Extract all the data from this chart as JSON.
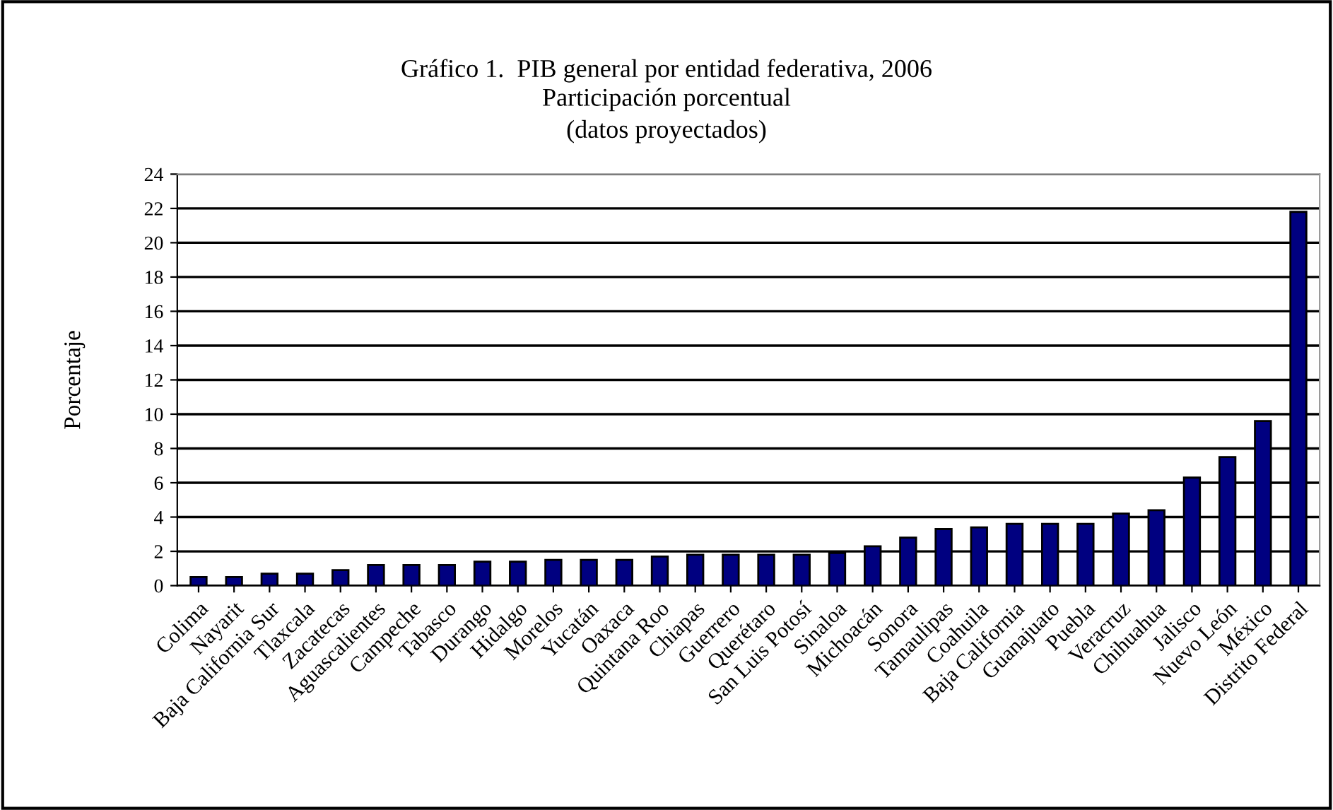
{
  "chart_data": {
    "type": "bar",
    "title": "Gráfico 1.  PIB general por entidad federativa, 2006",
    "subtitle": "Participación porcentual\n(datos proyectados)",
    "ylabel": "Porcentaje",
    "categories": [
      "Colima",
      "Nayarit",
      "Baja California Sur",
      "Tlaxcala",
      "Zacatecas",
      "Aguascalientes",
      "Campeche",
      "Tabasco",
      "Durango",
      "Hidalgo",
      "Morelos",
      "Yucatán",
      "Oaxaca",
      "Quintana Roo",
      "Chiapas",
      "Guerrero",
      "Querétaro",
      "San Luis Potosí",
      "Sinaloa",
      "Michoacán",
      "Sonora",
      "Tamaulipas",
      "Coahuila",
      "Baja California",
      "Guanajuato",
      "Puebla",
      "Veracruz",
      "Chihuahua",
      "Jalisco",
      "Nuevo León",
      "México",
      "Distrito Federal"
    ],
    "values": [
      0.5,
      0.5,
      0.7,
      0.7,
      0.9,
      1.2,
      1.2,
      1.2,
      1.4,
      1.4,
      1.5,
      1.5,
      1.5,
      1.7,
      1.8,
      1.8,
      1.8,
      1.8,
      1.9,
      2.3,
      2.8,
      3.3,
      3.4,
      3.6,
      3.6,
      3.6,
      4.2,
      4.4,
      6.3,
      7.5,
      9.6,
      21.8
    ],
    "color": "#000080",
    "ylim": [
      0,
      24
    ],
    "yticks": [
      0,
      2,
      4,
      6,
      8,
      10,
      12,
      14,
      16,
      18,
      20,
      22,
      24
    ],
    "grid": "y",
    "legend": false
  }
}
